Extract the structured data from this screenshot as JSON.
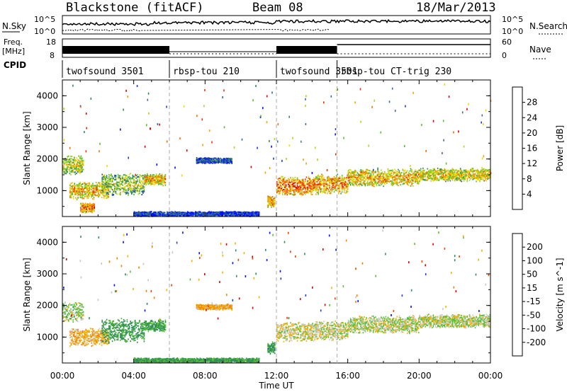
{
  "header": {
    "radar": "Blackstone (fitACF)",
    "beam": "Beam 08",
    "date": "18/Mar/2013"
  },
  "top_panels": {
    "nsky_label": "N.Sky",
    "nsearch_label": "N.Search",
    "noise_ticks": [
      "10^5",
      "10^0"
    ],
    "freq_label_1": "Freq.",
    "freq_label_2": "[MHz]",
    "freq_ticks": [
      "18",
      "8"
    ],
    "nave_label": "Nave",
    "nave_ticks": [
      "60",
      "0"
    ],
    "cpid_label": "CPID"
  },
  "cpid_segments": [
    {
      "label": "twofsound 3501",
      "start": 0.0,
      "end": 6.0
    },
    {
      "label": "rbsp-tou 210",
      "start": 6.0,
      "end": 12.0
    },
    {
      "label": "twofsound 3501",
      "start": 12.0,
      "end": 15.4
    },
    {
      "label": "rbsp-tou CT-trig 230",
      "start": 15.4,
      "end": 24.0
    }
  ],
  "chart_data": [
    {
      "type": "heatmap",
      "title": "Power",
      "ylabel": "Slant Range [km]",
      "xlabel": "Time UT",
      "x_ticks": [
        "00:00",
        "04:00",
        "08:00",
        "12:00",
        "16:00",
        "20:00",
        "00:00"
      ],
      "xlim": [
        0,
        24
      ],
      "ylim": [
        180,
        4500
      ],
      "y_ticks": [
        "1000",
        "2000",
        "3000",
        "4000"
      ],
      "colorbar_label": "Power [dB]",
      "colorbar_ticks": [
        "28",
        "24",
        "20",
        "16",
        "12",
        "8",
        "4"
      ],
      "colorbar_range": [
        0,
        32
      ],
      "colorbar_colors": [
        "#0010ff",
        "#2040c0",
        "#3a6aa0",
        "#2e8f58",
        "#58c030",
        "#a8d820",
        "#f0d800",
        "#f4a000",
        "#f07000",
        "#ee3000",
        "#dd0000"
      ],
      "echo_bands": [
        {
          "start": 0.0,
          "end": 1.2,
          "center": 1800,
          "width": 500,
          "level": 18
        },
        {
          "start": 0.4,
          "end": 2.6,
          "center": 1000,
          "width": 450,
          "level": 22
        },
        {
          "start": 1.0,
          "end": 1.8,
          "center": 450,
          "width": 250,
          "level": 26
        },
        {
          "start": 2.2,
          "end": 4.6,
          "center": 1200,
          "width": 600,
          "level": 16
        },
        {
          "start": 4.6,
          "end": 5.8,
          "center": 1350,
          "width": 300,
          "level": 22
        },
        {
          "start": 4.0,
          "end": 11.0,
          "center": 260,
          "width": 120,
          "level": 6
        },
        {
          "start": 7.5,
          "end": 9.5,
          "center": 1950,
          "width": 150,
          "level": 8
        },
        {
          "start": 11.5,
          "end": 11.9,
          "center": 650,
          "width": 300,
          "level": 24
        },
        {
          "start": 12.0,
          "end": 14.0,
          "center": 1150,
          "width": 500,
          "level": 26
        },
        {
          "start": 14.0,
          "end": 16.0,
          "center": 1200,
          "width": 500,
          "level": 24
        },
        {
          "start": 16.0,
          "end": 20.0,
          "center": 1400,
          "width": 450,
          "level": 22
        },
        {
          "start": 20.0,
          "end": 24.0,
          "center": 1500,
          "width": 350,
          "level": 20
        }
      ]
    },
    {
      "type": "heatmap",
      "ylabel": "Slant Range [km]",
      "xlabel": "Time UT",
      "x_ticks": [
        "00:00",
        "04:00",
        "08:00",
        "12:00",
        "16:00",
        "20:00",
        "00:00"
      ],
      "xlim": [
        0,
        24
      ],
      "ylim": [
        180,
        4500
      ],
      "y_ticks": [
        "1000",
        "2000",
        "3000",
        "4000"
      ],
      "colorbar_label": "Velocity [m s^-1]",
      "colorbar_ticks": [
        "200",
        "100",
        "50",
        "15",
        "-15",
        "-50",
        "-100",
        "-200"
      ],
      "colorbar_colors": [
        "#dd0000",
        "#ee4400",
        "#f48000",
        "#f4b000",
        "#c8c8c8",
        "#58c030",
        "#2e8f58",
        "#2040c0",
        "#0010ff"
      ],
      "echo_bands": [
        {
          "start": 0.0,
          "end": 1.2,
          "center": 1800,
          "width": 500,
          "velocity": -15
        },
        {
          "start": 0.4,
          "end": 2.6,
          "center": 1000,
          "width": 450,
          "velocity": 30
        },
        {
          "start": 2.2,
          "end": 4.6,
          "center": 1200,
          "width": 600,
          "velocity": -60
        },
        {
          "start": 4.6,
          "end": 5.8,
          "center": 1350,
          "width": 300,
          "velocity": -60
        },
        {
          "start": 4.0,
          "end": 11.0,
          "center": 260,
          "width": 120,
          "velocity": -60
        },
        {
          "start": 7.5,
          "end": 9.5,
          "center": 1950,
          "width": 150,
          "velocity": 40
        },
        {
          "start": 11.5,
          "end": 11.9,
          "center": 650,
          "width": 300,
          "velocity": -70
        },
        {
          "start": 12.0,
          "end": 14.0,
          "center": 1150,
          "width": 500,
          "velocity": 10
        },
        {
          "start": 14.0,
          "end": 16.0,
          "center": 1200,
          "width": 500,
          "velocity": 0
        },
        {
          "start": 16.0,
          "end": 20.0,
          "center": 1400,
          "width": 450,
          "velocity": -5
        },
        {
          "start": 20.0,
          "end": 24.0,
          "center": 1500,
          "width": 350,
          "velocity": -5
        }
      ]
    }
  ]
}
